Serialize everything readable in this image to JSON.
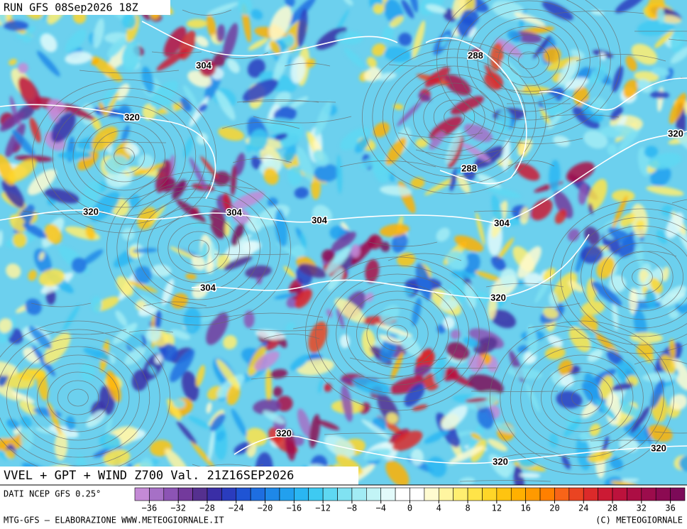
{
  "header": {
    "title": "RUN GFS 08Sep2026 18Z"
  },
  "map": {
    "caption": "VVEL + GPT + WIND Z700 Val. 21Z16SEP2026",
    "contour_labels": [
      304,
      320,
      320,
      304,
      304,
      304,
      288,
      288,
      320,
      304,
      320,
      320,
      320,
      320
    ]
  },
  "legend": {
    "source": "DATI NCEP GFS 0.25°",
    "range": [
      -38,
      38
    ],
    "colors": [
      "#c48ad6",
      "#a670c6",
      "#8c54b4",
      "#733a9c",
      "#55308f",
      "#3a2ea6",
      "#2a3cbe",
      "#1f54d4",
      "#1e6ee0",
      "#1e88e8",
      "#22a0ee",
      "#2ab6f2",
      "#3ecaf2",
      "#5ed8f2",
      "#80e2f2",
      "#a2ecf4",
      "#c2f4f6",
      "#e2fafa",
      "#ffffff",
      "#ffffff",
      "#fffbd0",
      "#fff5a0",
      "#ffee70",
      "#ffe448",
      "#ffd628",
      "#ffc410",
      "#ffb000",
      "#ff9a00",
      "#ff8000",
      "#f86418",
      "#ea4422",
      "#dc2a2a",
      "#cc1a34",
      "#bc123c",
      "#ac0e44",
      "#9c0c4c",
      "#8c0a52",
      "#7c0a58"
    ],
    "ticks": [
      {
        "value": -36,
        "label": "−36"
      },
      {
        "value": -32,
        "label": "−32"
      },
      {
        "value": -28,
        "label": "−28"
      },
      {
        "value": -24,
        "label": "−24"
      },
      {
        "value": -20,
        "label": "−20"
      },
      {
        "value": -16,
        "label": "−16"
      },
      {
        "value": -12,
        "label": "−12"
      },
      {
        "value": -8,
        "label": "−8"
      },
      {
        "value": -4,
        "label": "−4"
      },
      0,
      4,
      8,
      12,
      16,
      20,
      24,
      28,
      32,
      36
    ]
  },
  "footer": {
    "left": "MTG-GFS – ELABORAZIONE WWW.METEOGIORNALE.IT",
    "right": "(C) METEOGIORNALE"
  }
}
